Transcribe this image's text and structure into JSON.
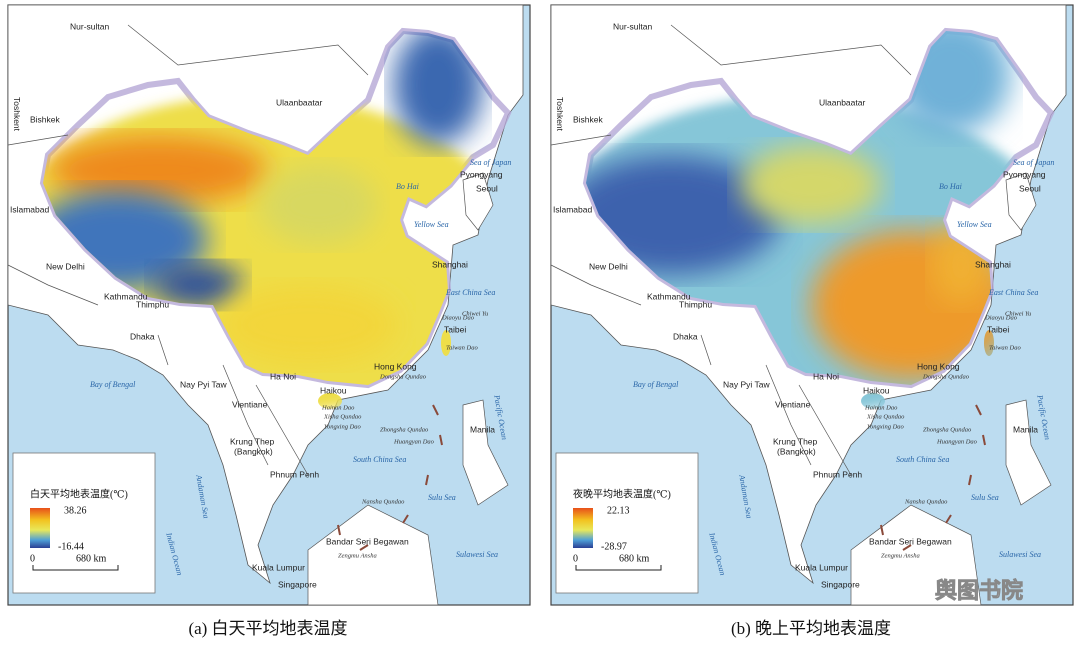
{
  "places": [
    "Nur-sultan",
    "Toshkent",
    "Bishkek",
    "Ulaanbaatar",
    "Islamabad",
    "New Delhi",
    "Kathmandu",
    "Thimphu",
    "Dhaka",
    "Nay Pyi Taw",
    "Ha Noi",
    "Vientiane",
    "Krung Thep",
    "(Bangkok)",
    "Phnum Penh",
    "Kuala Lumpur",
    "Singapore",
    "Bandar Seri Begawan",
    "Manila",
    "Hong Kong",
    "Haikou",
    "Taibei",
    "Shanghai",
    "Pyongyang",
    "Seoul",
    "Sea of Japan",
    "Yellow Sea",
    "East China Sea",
    "South China Sea",
    "Bay of Bengal",
    "Andaman Sea",
    "Indian Ocean",
    "Pacific Ocean",
    "Sulu Sea",
    "Sulawesi Sea",
    "Bo Hai",
    "Hainan Dao",
    "Taiwan Dao",
    "Dongsha Qundao",
    "Xisha Qundao",
    "Yongxing Dao",
    "Zhongsha Qundao",
    "Huangyan Dao",
    "Nansha Qundao",
    "Zengmu Ansha",
    "Diaoyu Dao",
    "Chiwei Yu"
  ],
  "maps": [
    {
      "legend": {
        "title": "白天平均地表温度(℃)",
        "max": "38.26",
        "min": "-16.44",
        "scale_start": "0",
        "scale_end": "680 km"
      },
      "caption": "(a) 白天平均地表温度"
    },
    {
      "legend": {
        "title": "夜晚平均地表温度(℃)",
        "max": "22.13",
        "min": "-28.97",
        "scale_start": "0",
        "scale_end": "680 km"
      },
      "caption": "(b) 晚上平均地表温度"
    }
  ],
  "watermark": "舆图书院"
}
